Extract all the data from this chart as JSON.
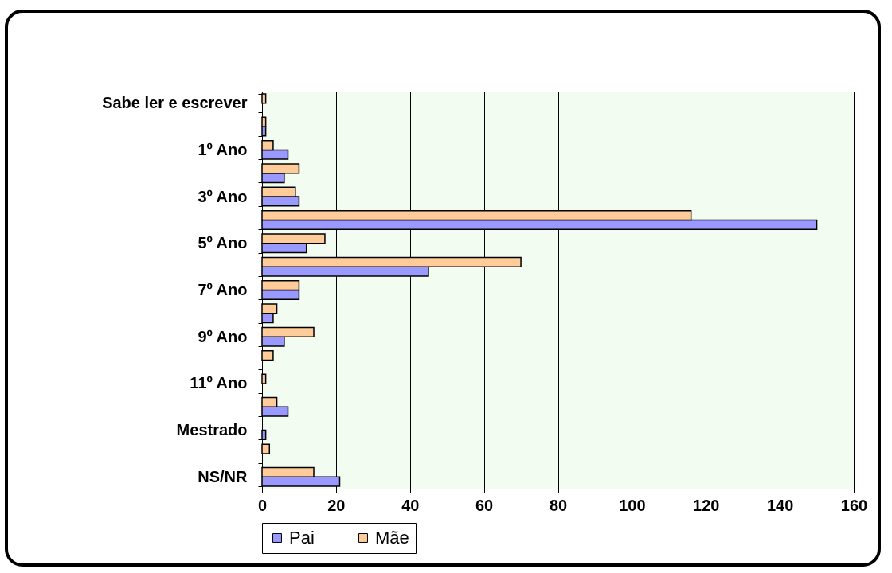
{
  "chart_data": {
    "type": "bar",
    "orientation": "horizontal",
    "categories": [
      "Sabe ler e escrever",
      null,
      "1º Ano",
      null,
      "3º Ano",
      null,
      "5º Ano",
      null,
      "7º Ano",
      null,
      "9º Ano",
      null,
      "11º Ano",
      null,
      "Mestrado",
      null,
      "NS/NR"
    ],
    "series": [
      {
        "name": "Pai",
        "color": "#9999ff",
        "values": [
          null,
          1,
          7,
          6,
          10,
          150,
          12,
          45,
          10,
          3,
          6,
          null,
          null,
          7,
          1,
          null,
          21
        ]
      },
      {
        "name": "Mãe",
        "color": "#ffcc99",
        "values": [
          1,
          1,
          3,
          10,
          9,
          116,
          17,
          70,
          10,
          4,
          14,
          3,
          1,
          4,
          null,
          2,
          14
        ]
      }
    ],
    "xlim": [
      0,
      160
    ],
    "xticks": [
      0,
      20,
      40,
      60,
      80,
      100,
      120,
      140,
      160
    ],
    "grid": "x",
    "legend": "bottom"
  }
}
